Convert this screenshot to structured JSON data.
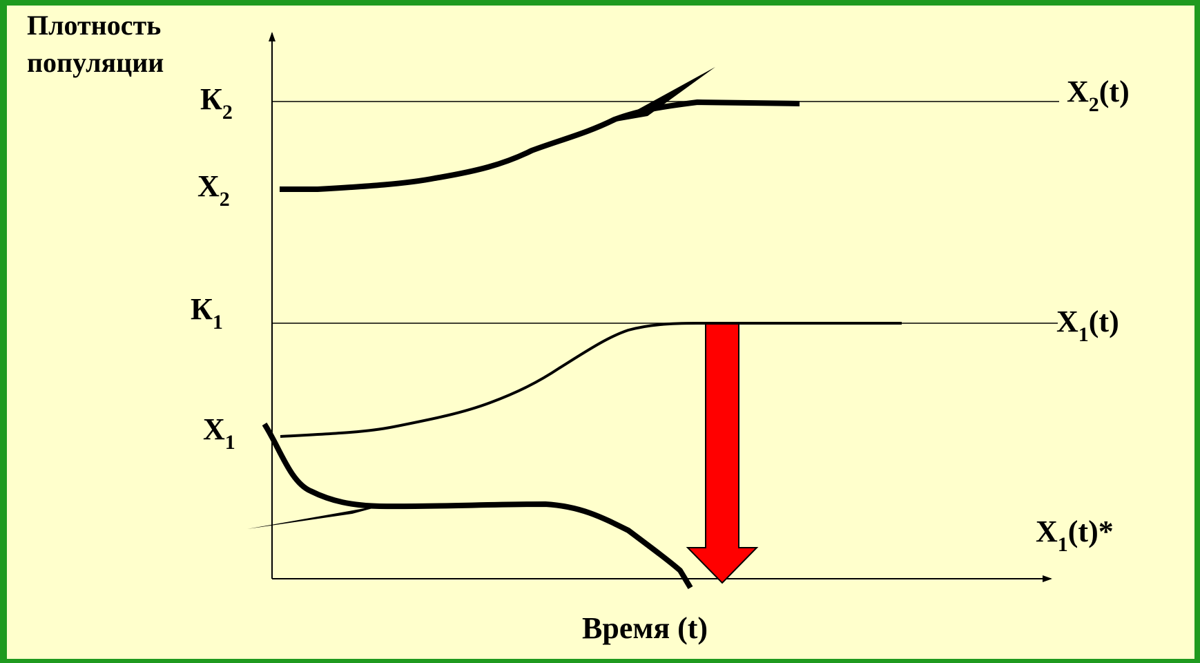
{
  "labels": {
    "y_axis_line1": "Плотность",
    "y_axis_line2": "популяции",
    "x_axis": "Время (t)",
    "K2": {
      "main": "К",
      "sub": "2"
    },
    "X2": {
      "main": "X",
      "sub": "2"
    },
    "K1": {
      "main": "К",
      "sub": "1"
    },
    "X1": {
      "main": "X",
      "sub": "1"
    },
    "X2t": {
      "main": "X",
      "sub": "2",
      "suffix": "(t)"
    },
    "X1t": {
      "main": "X",
      "sub": "1",
      "suffix": "(t)"
    },
    "X1t_star": {
      "main": "X",
      "sub": "1",
      "suffix": "(t)*"
    }
  },
  "colors": {
    "background": "#ffffcc",
    "frame": "#1f9a1f",
    "curves": "#000000",
    "arrow": "#ff0000"
  }
}
